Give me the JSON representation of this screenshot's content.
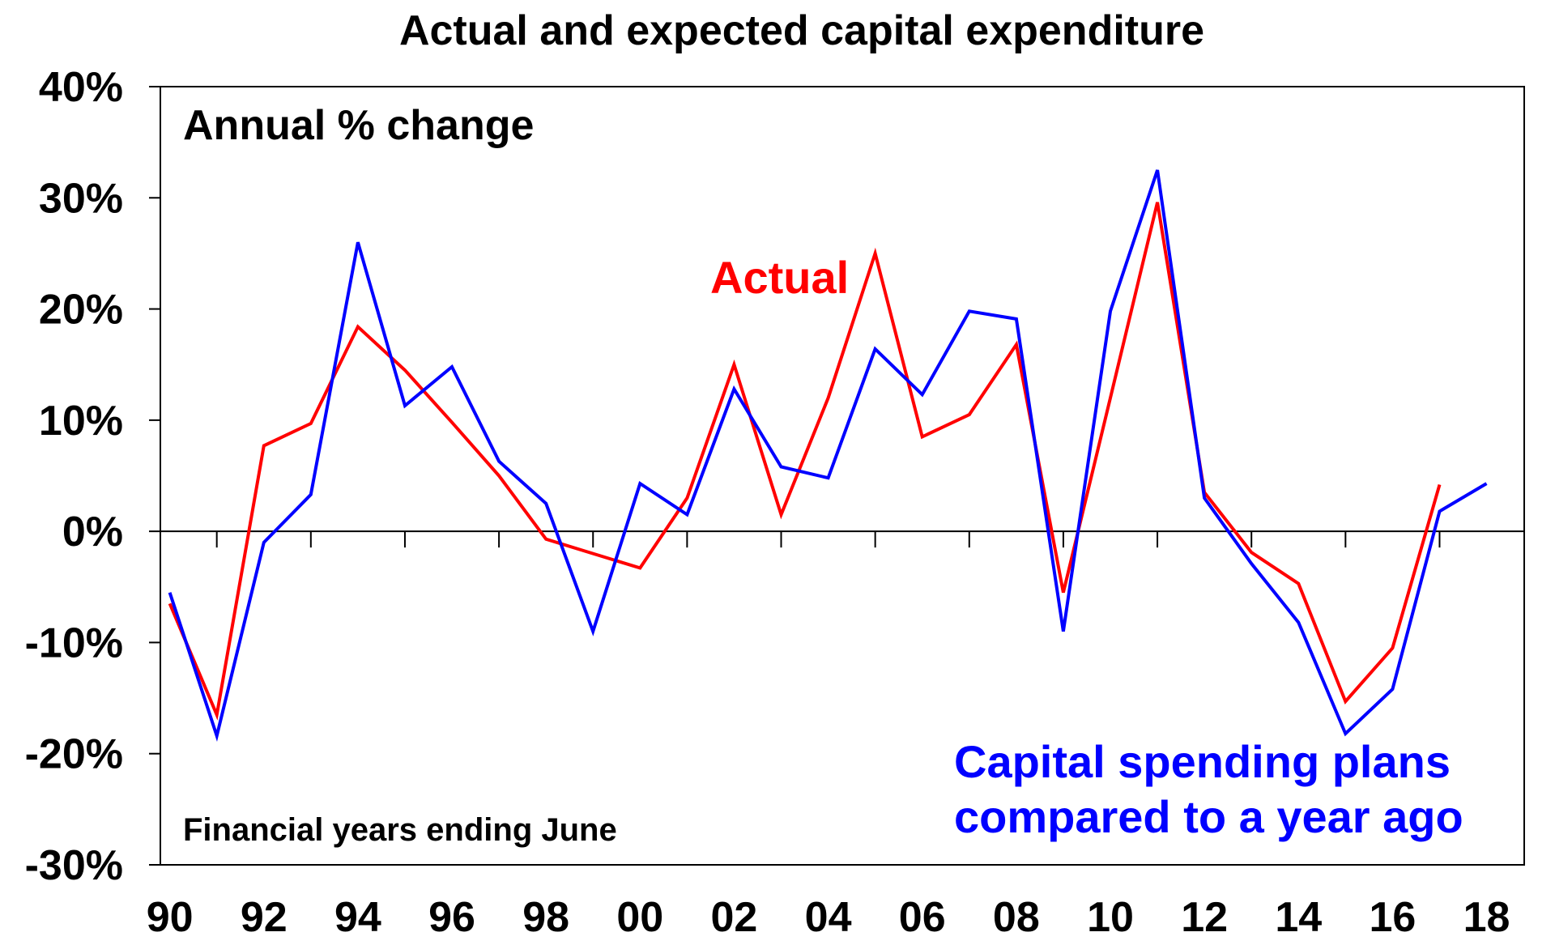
{
  "chart_data": {
    "type": "line",
    "title": "Actual and expected capital expenditure",
    "subtitle": "Annual % change",
    "note": "Financial years ending June",
    "xlabel": "",
    "ylabel": "",
    "x": [
      1990,
      1991,
      1992,
      1993,
      1994,
      1995,
      1996,
      1997,
      1998,
      1999,
      2000,
      2001,
      2002,
      2003,
      2004,
      2005,
      2006,
      2007,
      2008,
      2009,
      2010,
      2011,
      2012,
      2013,
      2014,
      2015,
      2016,
      2017,
      2018
    ],
    "x_tick_values": [
      1990,
      1992,
      1994,
      1996,
      1998,
      2000,
      2002,
      2004,
      2006,
      2008,
      2010,
      2012,
      2014,
      2016,
      2018
    ],
    "x_tick_labels": [
      "90",
      "92",
      "94",
      "96",
      "98",
      "00",
      "02",
      "04",
      "06",
      "08",
      "10",
      "12",
      "14",
      "16",
      "18"
    ],
    "xlim": [
      1989.8,
      2018.8
    ],
    "ylim": [
      -30,
      40
    ],
    "y_ticks": [
      -30,
      -20,
      -10,
      0,
      10,
      20,
      30,
      40
    ],
    "y_tick_labels": [
      "-30%",
      "-20%",
      "-10%",
      "0%",
      "10%",
      "20%",
      "30%",
      "40%"
    ],
    "grid": false,
    "series": [
      {
        "name": "Actual",
        "color": "#ff0000",
        "values": [
          -6.5,
          -16.5,
          7.7,
          9.7,
          18.4,
          14.5,
          9.8,
          5.0,
          -0.7,
          -2.0,
          -3.3,
          3.0,
          15.0,
          1.5,
          12.0,
          25.0,
          8.5,
          10.5,
          16.8,
          -5.5,
          12.0,
          29.6,
          3.5,
          -1.9,
          -4.7,
          -15.3,
          -10.5,
          4.2,
          null
        ]
      },
      {
        "name": "Capital spending plans\ncompared to a year ago",
        "color": "#0000ff",
        "values": [
          -5.5,
          -18.4,
          -1.0,
          3.3,
          26.0,
          11.3,
          14.8,
          6.3,
          2.5,
          -9.0,
          4.3,
          1.5,
          12.8,
          5.8,
          4.8,
          16.4,
          12.3,
          19.8,
          19.1,
          -9.0,
          19.8,
          32.5,
          3.0,
          -2.9,
          -8.2,
          -18.2,
          -14.2,
          1.8,
          4.3
        ]
      }
    ],
    "labels": {
      "actual": "Actual",
      "plans_line1": "Capital spending plans",
      "plans_line2": "compared to a year ago"
    }
  }
}
